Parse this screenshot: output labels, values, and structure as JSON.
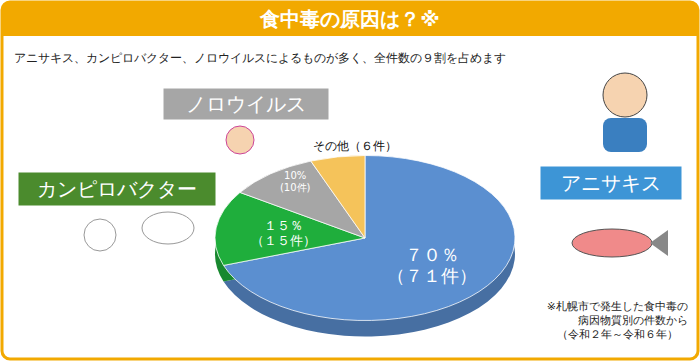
{
  "chart_data": {
    "type": "pie",
    "title": "食中毒の原因は？※",
    "subtitle": "アニサキス、カンピロバクター、ノロウイルスによるものが多く、全件数の９割を占めます",
    "categories": [
      "アニサキス",
      "カンピロバクター",
      "ノロウイルス",
      "その他"
    ],
    "values": [
      71,
      15,
      10,
      6
    ],
    "value_labels": [
      "（７１件）",
      "（１５件）",
      "(10件)",
      "（６件）"
    ],
    "percentages": [
      70,
      15,
      10,
      null
    ],
    "percentage_labels": [
      "７０％",
      "１５％",
      "10%",
      null
    ],
    "colors": [
      "#5b8fd0",
      "#1fae3c",
      "#a6a6a6",
      "#f5c35a"
    ],
    "data_labels": true,
    "note": [
      "※札幌市で発生した食中毒の",
      "病因物質別の件数から",
      "（令和２年～令和６年）"
    ]
  }
}
